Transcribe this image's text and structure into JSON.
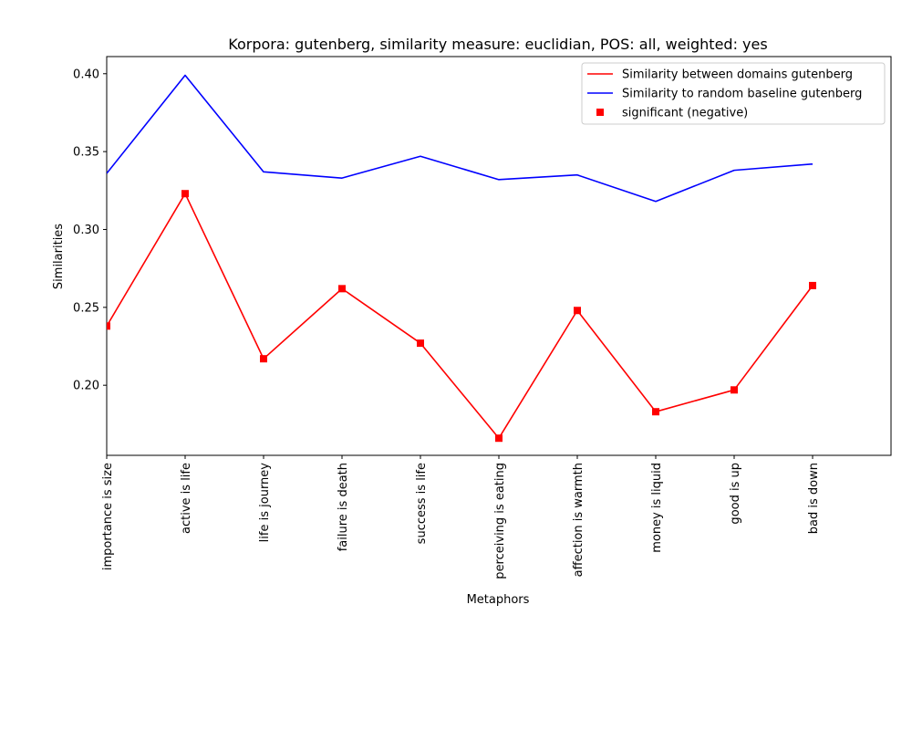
{
  "chart_data": {
    "type": "line",
    "title": "Korpora: gutenberg, similarity measure: euclidian, POS: all, weighted: yes",
    "xlabel": "Metaphors",
    "ylabel": "Similarities",
    "categories": [
      "importance is size",
      "active is life",
      "life is journey",
      "failure is death",
      "success is life",
      "perceiving is eating",
      "affection is warmth",
      "money is liquid",
      "good is up",
      "bad is down"
    ],
    "x_range": [
      0,
      10
    ],
    "ylim": [
      0.155,
      0.411
    ],
    "y_ticks": [
      0.2,
      0.25,
      0.3,
      0.35,
      0.4
    ],
    "y_tick_labels": [
      "0.20",
      "0.25",
      "0.30",
      "0.35",
      "0.40"
    ],
    "grid": false,
    "legend_position": "top-right",
    "series": [
      {
        "name": "Similarity between domains gutenberg",
        "color": "#ff0000",
        "style": "line",
        "values": [
          0.238,
          0.323,
          0.217,
          0.262,
          0.227,
          0.166,
          0.248,
          0.183,
          0.197,
          0.264
        ]
      },
      {
        "name": "Similarity to random baseline gutenberg",
        "color": "#0000ff",
        "style": "line",
        "values": [
          0.336,
          0.399,
          0.337,
          0.333,
          0.347,
          0.332,
          0.335,
          0.318,
          0.338,
          0.342
        ]
      },
      {
        "name": "significant (negative)",
        "color": "#ff0000",
        "style": "square-markers",
        "values": [
          0.238,
          0.323,
          0.217,
          0.262,
          0.227,
          0.166,
          0.248,
          0.183,
          0.197,
          0.264
        ]
      }
    ]
  }
}
